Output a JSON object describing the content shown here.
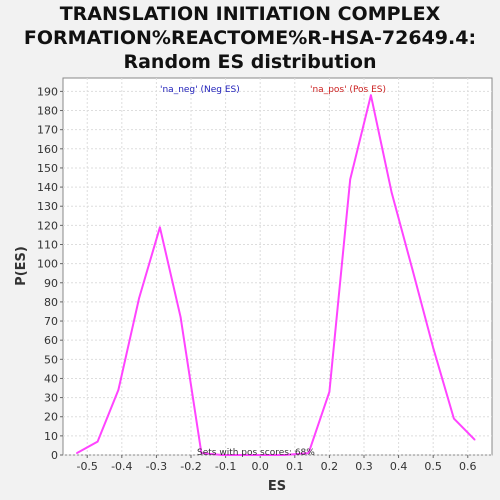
{
  "title_lines": [
    "TRANSLATION INITIATION COMPLEX",
    "FORMATION%REACTOME%R-HSA-72649.4:",
    "Random ES distribution"
  ],
  "colors": {
    "line": "#ff44ff",
    "neg_label": "#2222bb",
    "pos_label": "#cc2222",
    "grid": "#dddddd"
  },
  "chart_data": {
    "type": "line",
    "title": "TRANSLATION INITIATION COMPLEX FORMATION%REACTOME%R-HSA-72649.4: Random ES distribution",
    "xlabel": "ES",
    "ylabel": "P(ES)",
    "xlim": [
      -0.57,
      0.67
    ],
    "ylim": [
      0,
      197
    ],
    "x_ticks": [
      -0.5,
      -0.4,
      -0.3,
      -0.2,
      -0.1,
      0.0,
      0.1,
      0.2,
      0.3,
      0.4,
      0.5,
      0.6
    ],
    "x_tick_labels": [
      "-0.5",
      "-0.4",
      "-0.3",
      "-0.2",
      "-0.1",
      "0.0",
      "0.1",
      "0.2",
      "0.3",
      "0.4",
      "0.5",
      "0.6"
    ],
    "y_ticks": [
      0,
      10,
      20,
      30,
      40,
      50,
      60,
      70,
      80,
      90,
      100,
      110,
      120,
      130,
      140,
      150,
      160,
      170,
      180,
      190
    ],
    "grid": true,
    "series": [
      {
        "x": [
          -0.53,
          -0.47,
          -0.41,
          -0.35,
          -0.29,
          -0.23,
          -0.17,
          -0.11,
          -0.05,
          0.01,
          0.07,
          0.14,
          0.2,
          0.26,
          0.32,
          0.38,
          0.44,
          0.5,
          0.56,
          0.62
        ],
        "y": [
          1,
          7,
          34,
          82,
          119,
          72,
          1,
          0,
          0,
          0,
          0,
          1,
          33,
          144,
          188,
          137,
          97,
          56,
          19,
          8
        ]
      }
    ],
    "annotations": {
      "neg_label": "'na_neg' (Neg ES)",
      "pos_label": "'na_pos' (Pos ES)",
      "footer": "Sets with pos scores: 68%"
    }
  }
}
